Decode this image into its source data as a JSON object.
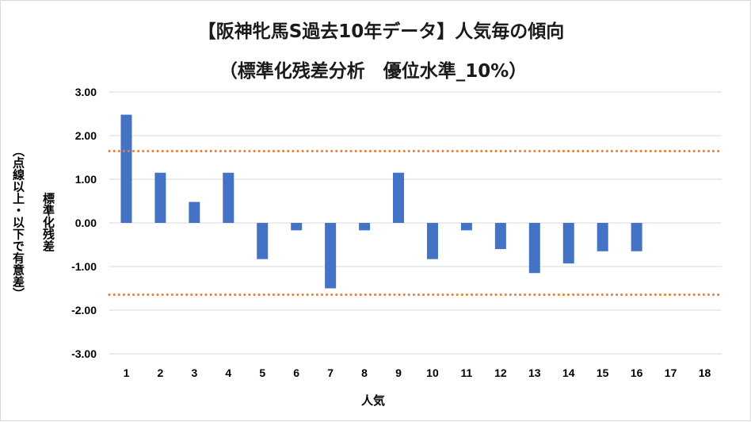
{
  "chart_data": {
    "type": "bar",
    "title": "【阪神牝馬S過去10年データ】人気毎の傾向",
    "subtitle": "（標準化残差分析　優位水準_10%）",
    "xlabel": "人気",
    "ylabel": "標準化残差",
    "ylabel_note": "（点線以上・以下で有意差）",
    "categories": [
      "1",
      "2",
      "3",
      "4",
      "5",
      "6",
      "7",
      "8",
      "9",
      "10",
      "11",
      "12",
      "13",
      "14",
      "15",
      "16",
      "17",
      "18"
    ],
    "values": [
      2.48,
      1.15,
      0.48,
      1.15,
      -0.83,
      -0.17,
      -1.5,
      -0.17,
      1.15,
      -0.83,
      -0.17,
      -0.6,
      -1.15,
      -0.93,
      -0.65,
      -0.65,
      null,
      null
    ],
    "yticks": [
      "3.00",
      "2.00",
      "1.00",
      "0.00",
      "-1.00",
      "-2.00",
      "-3.00"
    ],
    "ylim": [
      -3,
      3
    ],
    "threshold_upper": 1.645,
    "threshold_lower": -1.645,
    "bar_color": "#4472c4",
    "threshold_color": "#ed7d31",
    "grid": true,
    "legend": "none"
  }
}
